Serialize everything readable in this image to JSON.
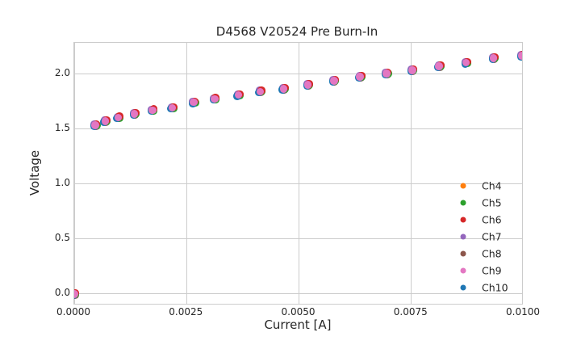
{
  "chart_data": {
    "type": "scatter",
    "title": "D4568 V20524 Pre Burn-In",
    "xlabel": "Current [A]",
    "ylabel": "Voltage",
    "xlim": [
      0.0,
      0.01
    ],
    "ylim": [
      -0.103,
      2.284
    ],
    "xticks": {
      "values": [
        0.0,
        0.0025,
        0.005,
        0.0075,
        0.01
      ],
      "labels": [
        "0.0000",
        "0.0025",
        "0.0050",
        "0.0075",
        "0.0100"
      ]
    },
    "yticks": {
      "values": [
        0.0,
        0.5,
        1.0,
        1.5,
        2.0
      ],
      "labels": [
        "0.0",
        "0.5",
        "1.0",
        "1.5",
        "2.0"
      ]
    },
    "grid": true,
    "background_color": "#ffffff",
    "grid_color": "#cccccc",
    "spine_color": "#cccccc",
    "text_color": "#262626",
    "legend": {
      "position": "lower-right-inside",
      "entries": [
        {
          "label": "Ch4",
          "color": "#ff7f0e"
        },
        {
          "label": "Ch5",
          "color": "#2ca02c"
        },
        {
          "label": "Ch6",
          "color": "#d62728"
        },
        {
          "label": "Ch7",
          "color": "#9467bd"
        },
        {
          "label": "Ch8",
          "color": "#8c564b"
        },
        {
          "label": "Ch9",
          "color": "#e377c2"
        },
        {
          "label": "Ch10",
          "color": "#1f77b4"
        }
      ]
    },
    "x": [
      0.0,
      0.00047,
      0.00069,
      0.00098,
      0.00134,
      0.00174,
      0.00218,
      0.00266,
      0.00312,
      0.00365,
      0.00414,
      0.00466,
      0.0052,
      0.00578,
      0.00636,
      0.00695,
      0.00752,
      0.00812,
      0.00872,
      0.00933,
      0.00996
    ],
    "series": [
      {
        "name": "Ch4",
        "color": "#ff7f0e",
        "values": [
          0.0,
          1.535,
          1.572,
          1.604,
          1.638,
          1.67,
          1.692,
          1.743,
          1.773,
          1.809,
          1.841,
          1.866,
          1.902,
          1.939,
          1.976,
          2.005,
          2.035,
          2.071,
          2.103,
          2.145,
          2.167
        ]
      },
      {
        "name": "Ch5",
        "color": "#2ca02c",
        "values": [
          0.0,
          1.535,
          1.572,
          1.604,
          1.638,
          1.67,
          1.692,
          1.743,
          1.773,
          1.809,
          1.841,
          1.866,
          1.902,
          1.939,
          1.976,
          2.005,
          2.035,
          2.071,
          2.103,
          2.145,
          2.167
        ]
      },
      {
        "name": "Ch6",
        "color": "#d62728",
        "values": [
          0.0,
          1.535,
          1.572,
          1.604,
          1.638,
          1.67,
          1.692,
          1.743,
          1.773,
          1.809,
          1.841,
          1.866,
          1.902,
          1.939,
          1.976,
          2.005,
          2.035,
          2.071,
          2.103,
          2.145,
          2.167
        ]
      },
      {
        "name": "Ch7",
        "color": "#9467bd",
        "values": [
          0.0,
          1.535,
          1.572,
          1.604,
          1.638,
          1.67,
          1.692,
          1.743,
          1.773,
          1.809,
          1.841,
          1.866,
          1.902,
          1.939,
          1.976,
          2.005,
          2.035,
          2.071,
          2.103,
          2.145,
          2.167
        ]
      },
      {
        "name": "Ch8",
        "color": "#8c564b",
        "values": [
          0.0,
          1.535,
          1.572,
          1.604,
          1.638,
          1.67,
          1.692,
          1.743,
          1.773,
          1.809,
          1.841,
          1.866,
          1.902,
          1.939,
          1.976,
          2.005,
          2.035,
          2.071,
          2.103,
          2.145,
          2.167
        ]
      },
      {
        "name": "Ch9",
        "color": "#e377c2",
        "values": [
          0.0,
          1.535,
          1.572,
          1.604,
          1.638,
          1.67,
          1.692,
          1.743,
          1.773,
          1.809,
          1.841,
          1.866,
          1.902,
          1.939,
          1.976,
          2.005,
          2.035,
          2.071,
          2.103,
          2.145,
          2.167
        ]
      },
      {
        "name": "Ch10",
        "color": "#1f77b4",
        "values": [
          0.0,
          1.535,
          1.572,
          1.604,
          1.638,
          1.67,
          1.692,
          1.743,
          1.773,
          1.809,
          1.841,
          1.866,
          1.902,
          1.939,
          1.976,
          2.005,
          2.035,
          2.071,
          2.103,
          2.145,
          2.167
        ]
      }
    ],
    "overlap": "All seven channel series coincide at every point; Ch9 (pink) markers render on top with small Ch6 (red) and Ch10 (blue) fringes visible."
  }
}
